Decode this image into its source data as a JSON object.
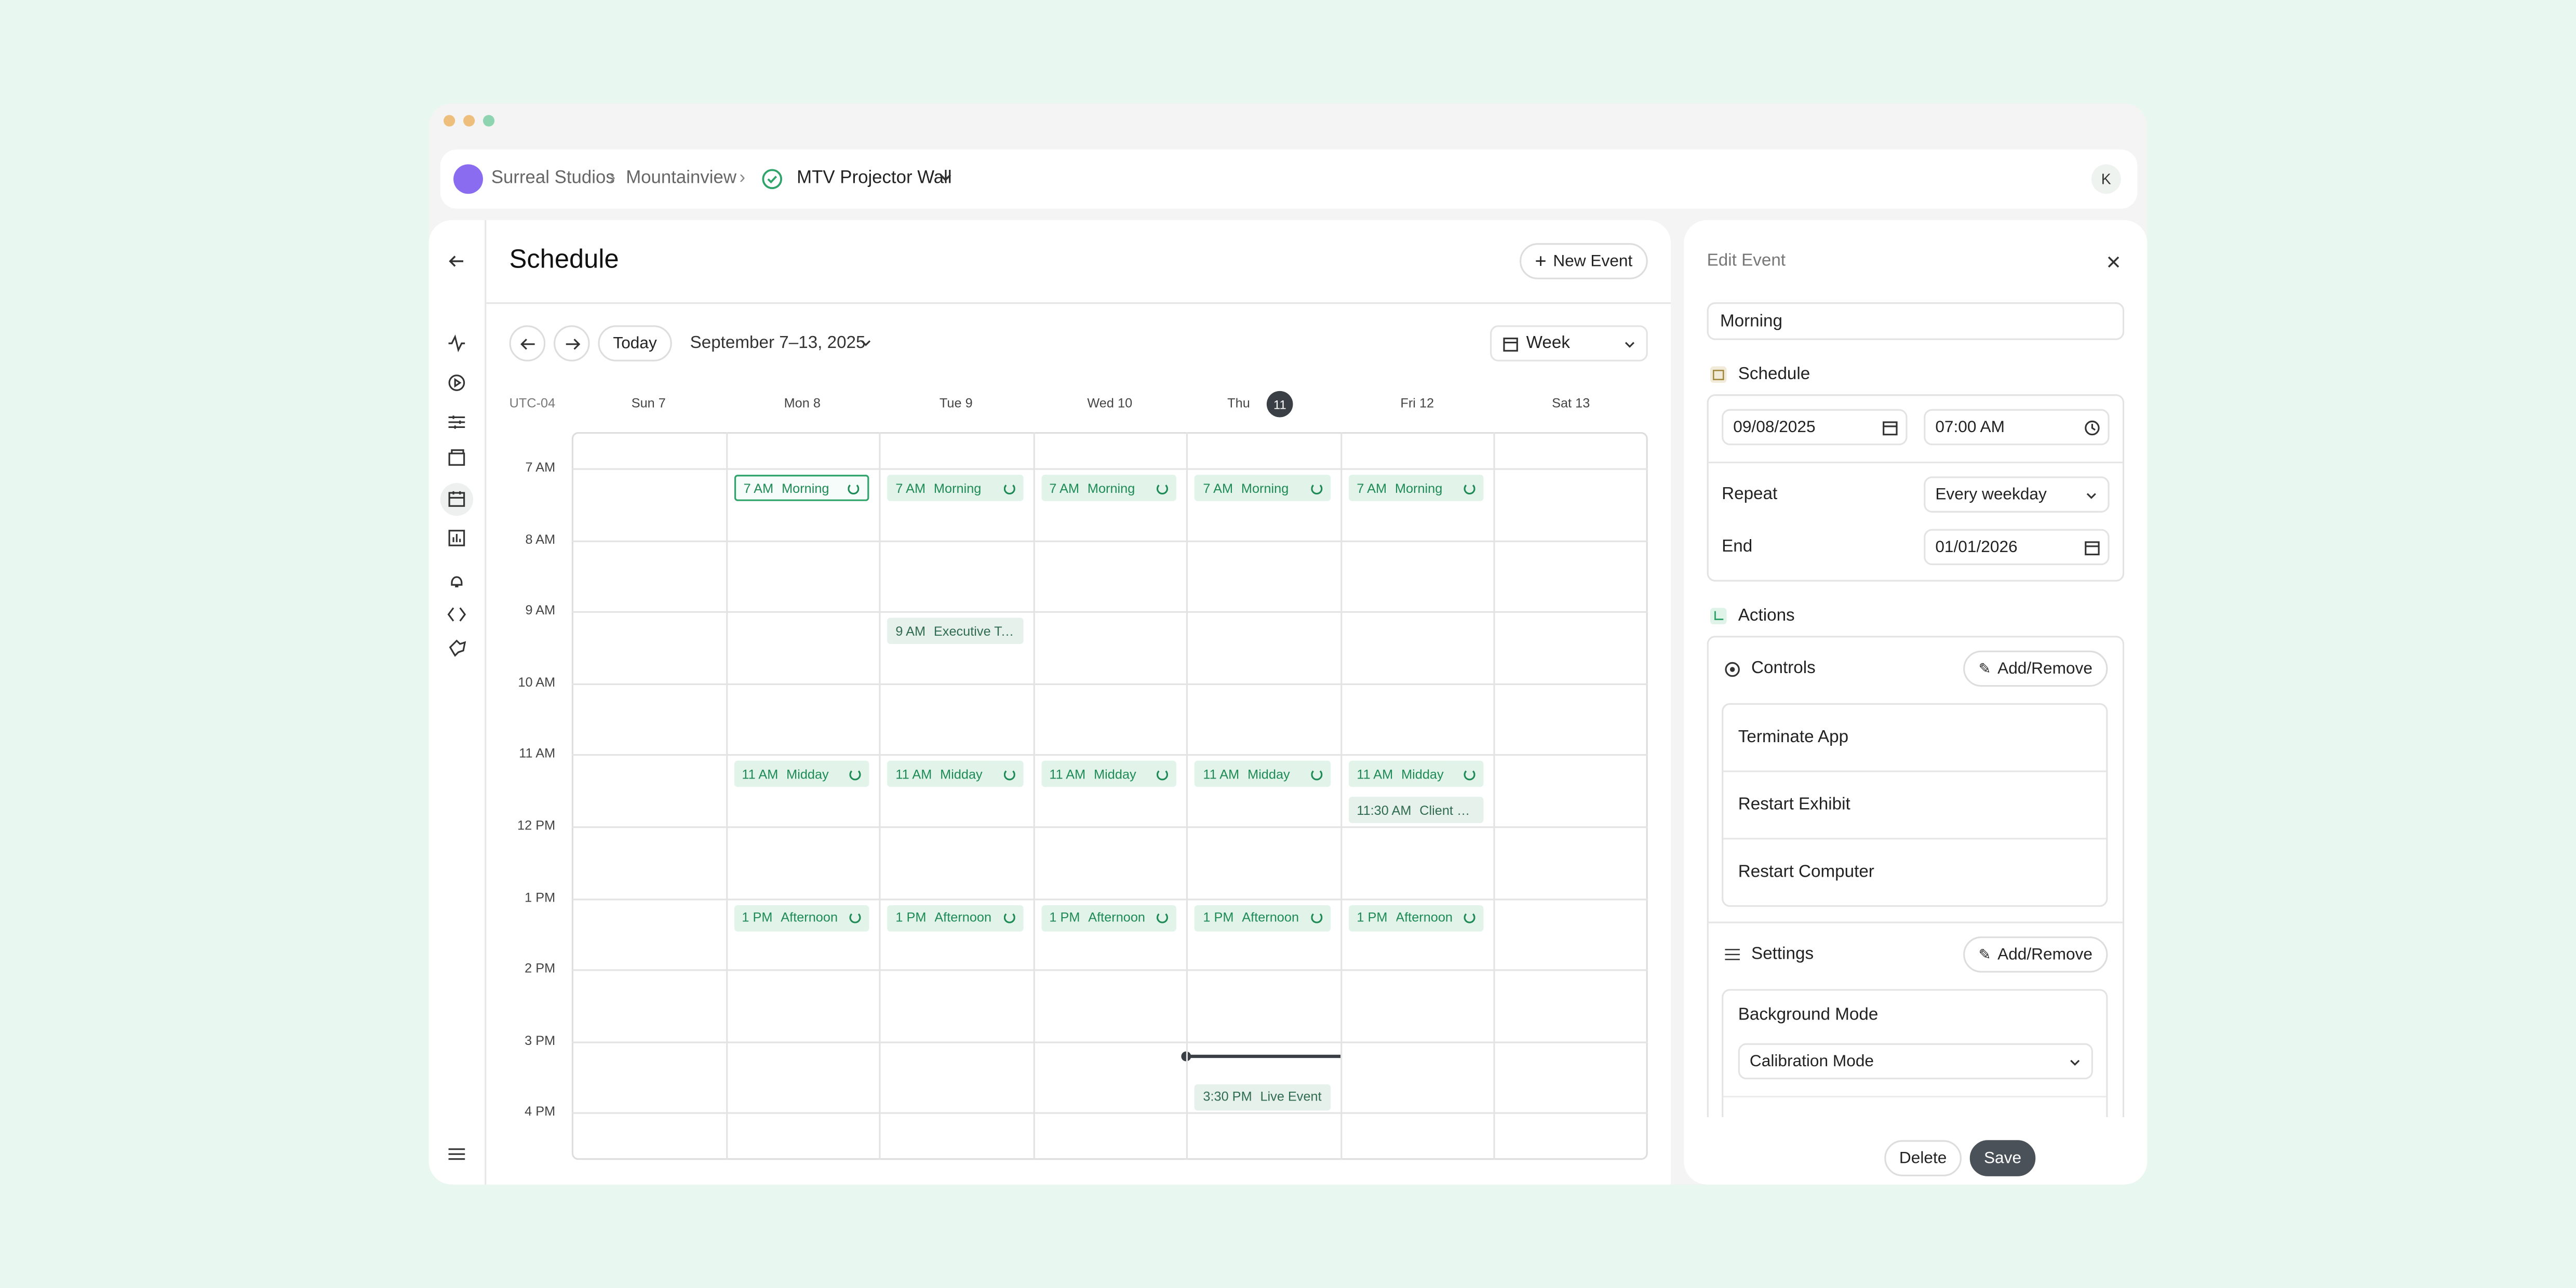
{
  "breadcrumb": {
    "org": "Surreal Studios",
    "location": "Mountainview",
    "device": "MTV Projector Wall",
    "avatar": "K"
  },
  "schedule": {
    "title": "Schedule",
    "new_event": "New Event",
    "today": "Today",
    "range": "September 7–13, 2025",
    "view": "Week",
    "timezone": "UTC-04",
    "hours": [
      "7 AM",
      "8 AM",
      "9 AM",
      "10 AM",
      "11 AM",
      "12 PM",
      "1 PM",
      "2 PM",
      "3 PM",
      "4 PM"
    ],
    "days": [
      {
        "label": "Sun",
        "date": "7",
        "events": []
      },
      {
        "label": "Mon",
        "date": "8",
        "events": [
          {
            "time": "7 AM",
            "title": "Morning",
            "repeat": true,
            "selected": true
          },
          {
            "time": "11 AM",
            "title": "Midday",
            "repeat": true
          },
          {
            "time": "1 PM",
            "title": "Afternoon",
            "repeat": true
          }
        ]
      },
      {
        "label": "Tue",
        "date": "9",
        "events": [
          {
            "time": "7 AM",
            "title": "Morning",
            "repeat": true
          },
          {
            "time": "9 AM",
            "title": "Executive Tour",
            "repeat": false
          },
          {
            "time": "11 AM",
            "title": "Midday",
            "repeat": true
          },
          {
            "time": "1 PM",
            "title": "Afternoon",
            "repeat": true
          }
        ]
      },
      {
        "label": "Wed",
        "date": "10",
        "events": [
          {
            "time": "7 AM",
            "title": "Morning",
            "repeat": true
          },
          {
            "time": "11 AM",
            "title": "Midday",
            "repeat": true
          },
          {
            "time": "1 PM",
            "title": "Afternoon",
            "repeat": true
          }
        ]
      },
      {
        "label": "Thu",
        "date": "11",
        "current": true,
        "events": [
          {
            "time": "7 AM",
            "title": "Morning",
            "repeat": true
          },
          {
            "time": "11 AM",
            "title": "Midday",
            "repeat": true
          },
          {
            "time": "1 PM",
            "title": "Afternoon",
            "repeat": true
          },
          {
            "time": "3:30 PM",
            "title": "Live Event",
            "repeat": false
          }
        ]
      },
      {
        "label": "Fri",
        "date": "12",
        "events": [
          {
            "time": "7 AM",
            "title": "Morning",
            "repeat": true
          },
          {
            "time": "11 AM",
            "title": "Midday",
            "repeat": true
          },
          {
            "time": "11:30 AM",
            "title": "Client Spe...",
            "repeat": false
          },
          {
            "time": "1 PM",
            "title": "Afternoon",
            "repeat": true
          }
        ]
      },
      {
        "label": "Sat",
        "date": "13",
        "events": []
      }
    ]
  },
  "edit": {
    "title": "Edit Event",
    "name": "Morning",
    "schedule_heading": "Schedule",
    "date": "09/08/2025",
    "time": "07:00 AM",
    "repeat_label": "Repeat",
    "repeat": "Every weekday",
    "end_label": "End",
    "end": "01/01/2026",
    "actions_heading": "Actions",
    "controls": {
      "heading": "Controls",
      "button": "Add/Remove",
      "items": [
        "Terminate App",
        "Restart Exhibit",
        "Restart Computer"
      ]
    },
    "settings": {
      "heading": "Settings",
      "button": "Add/Remove",
      "field": "Background Mode",
      "value": "Calibration Mode"
    },
    "delete": "Delete",
    "save": "Save"
  }
}
